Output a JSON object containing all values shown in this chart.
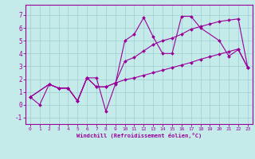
{
  "xlabel": "Windchill (Refroidissement éolien,°C)",
  "xlim": [
    -0.5,
    23.5
  ],
  "ylim": [
    -1.5,
    7.8
  ],
  "xticks": [
    0,
    1,
    2,
    3,
    4,
    5,
    6,
    7,
    8,
    9,
    10,
    11,
    12,
    13,
    14,
    15,
    16,
    17,
    18,
    19,
    20,
    21,
    22,
    23
  ],
  "yticks": [
    -1,
    0,
    1,
    2,
    3,
    4,
    5,
    6,
    7
  ],
  "background_color": "#c5eaea",
  "grid_color": "#9ecece",
  "line_color": "#990099",
  "line1_x": [
    0,
    1,
    2,
    3,
    4,
    5,
    6,
    7,
    8,
    9,
    10,
    11,
    12,
    13,
    14,
    15,
    16,
    17,
    18,
    20,
    21,
    22,
    23
  ],
  "line1_y": [
    0.6,
    0.0,
    1.6,
    1.3,
    1.3,
    0.3,
    2.1,
    2.1,
    -0.5,
    1.6,
    5.0,
    5.5,
    6.8,
    5.3,
    4.0,
    4.0,
    6.9,
    6.9,
    6.0,
    5.0,
    3.8,
    4.3,
    2.9
  ],
  "line2_x": [
    0,
    2,
    3,
    4,
    5,
    6,
    7,
    8,
    9,
    10,
    11,
    12,
    13,
    14,
    15,
    16,
    17,
    18,
    19,
    20,
    21,
    22,
    23
  ],
  "line2_y": [
    0.6,
    1.6,
    1.3,
    1.3,
    0.3,
    2.1,
    1.4,
    1.4,
    1.7,
    3.4,
    3.7,
    4.2,
    4.7,
    5.0,
    5.2,
    5.5,
    5.9,
    6.1,
    6.3,
    6.5,
    6.6,
    6.7,
    2.9
  ],
  "line3_x": [
    0,
    2,
    3,
    4,
    5,
    6,
    7,
    8,
    9,
    10,
    11,
    12,
    13,
    14,
    15,
    16,
    17,
    18,
    19,
    20,
    21,
    22,
    23
  ],
  "line3_y": [
    0.6,
    1.6,
    1.3,
    1.3,
    0.3,
    2.1,
    1.4,
    1.4,
    1.7,
    1.95,
    2.1,
    2.3,
    2.5,
    2.7,
    2.9,
    3.1,
    3.3,
    3.55,
    3.75,
    3.95,
    4.15,
    4.35,
    2.9
  ]
}
